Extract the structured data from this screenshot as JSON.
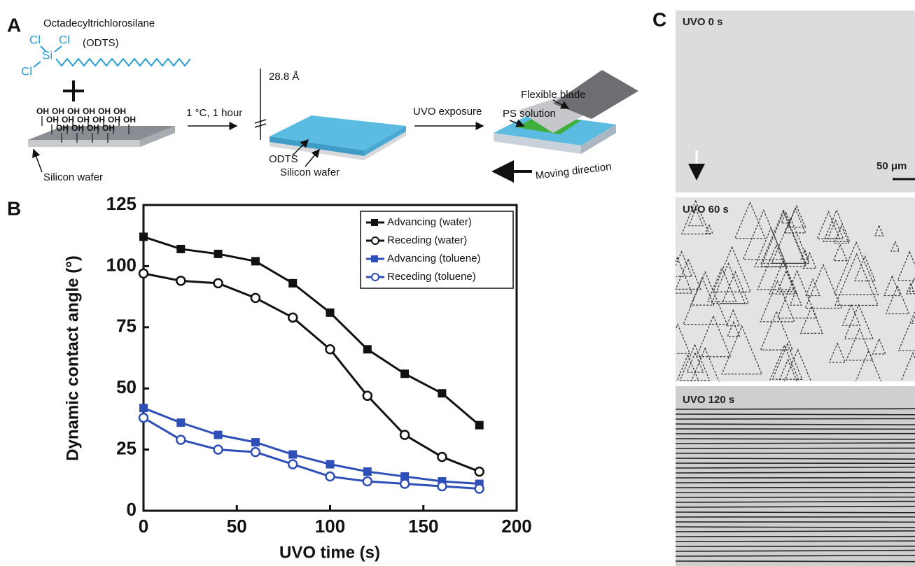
{
  "panel_a": {
    "label": "A",
    "compound": "Octadecyltrichlorosilane",
    "abbreviation": "(ODTS)",
    "atoms": [
      "Cl",
      "Cl",
      "Si",
      "Cl"
    ],
    "hydroxyls": [
      "OH",
      "OH",
      "OH",
      "OH",
      "OH",
      "OH",
      "OH",
      "OH",
      "OH",
      "OH",
      "OH",
      "OH",
      "OH",
      "OH",
      "OH",
      "OH"
    ],
    "step1": "1 °C, 1 hour",
    "thickness": "28.8 Å",
    "layer": "ODTS",
    "substrate_1": "Silicon wafer",
    "substrate_2": "Silicon wafer",
    "step2": "UVO exposure",
    "blade": "Flexible blade",
    "solution": "PS solution",
    "direction": "Moving direction"
  },
  "chart_data": {
    "type": "line",
    "panel_label": "B",
    "x_label": "UVO time (s)",
    "y_label": "Dynamic contact angle (°)",
    "x": [
      0,
      20,
      40,
      60,
      80,
      100,
      120,
      140,
      160,
      180
    ],
    "series": [
      {
        "name": "Advancing (water)",
        "color": "#111111",
        "marker": "square",
        "values": [
          112,
          107,
          105,
          102,
          93,
          81,
          66,
          56,
          48,
          35
        ]
      },
      {
        "name": "Receding (water)",
        "color": "#111111",
        "marker": "circle",
        "values": [
          97,
          94,
          93,
          87,
          79,
          66,
          47,
          31,
          22,
          16
        ]
      },
      {
        "name": "Advancing (toluene)",
        "color": "#2f4fb8",
        "marker": "square",
        "values": [
          42,
          36,
          31,
          28,
          23,
          19,
          16,
          14,
          12,
          11
        ]
      },
      {
        "name": "Receding (toluene)",
        "color": "#2f4fb8",
        "marker": "circle",
        "values": [
          38,
          29,
          25,
          24,
          19,
          14,
          12,
          11,
          10,
          9
        ]
      }
    ],
    "xlim": [
      0,
      200
    ],
    "xticks": [
      0,
      50,
      100,
      150,
      200
    ],
    "ylim": [
      0,
      125
    ],
    "yticks": [
      0,
      25,
      50,
      75,
      100,
      125
    ],
    "legend": "upper right"
  },
  "panel_c": {
    "label": "C",
    "images": [
      {
        "label": "UVO 0 s"
      },
      {
        "label": "UVO 60 s"
      },
      {
        "label": "UVO 120 s"
      }
    ],
    "scale_bar": "50 μm"
  }
}
